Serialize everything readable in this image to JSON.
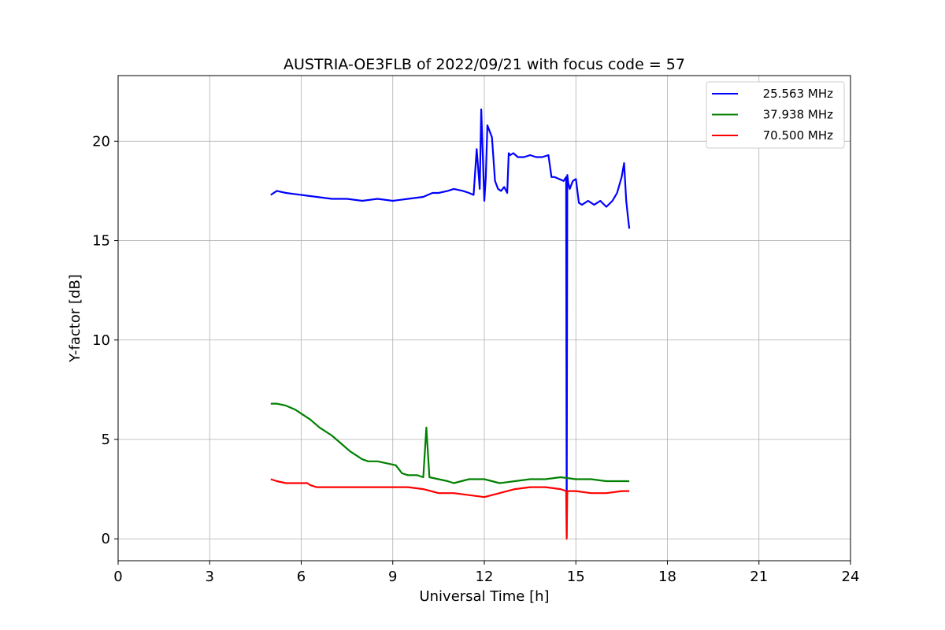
{
  "chart_data": {
    "type": "line",
    "title": "AUSTRIA-OE3FLB of 2022/09/21 with focus code = 57",
    "xlabel": "Universal Time [h]",
    "ylabel": "Y-factor [dB]",
    "xlim": [
      0,
      24
    ],
    "ylim": [
      -1.1,
      23.3
    ],
    "xticks": [
      0,
      3,
      6,
      9,
      12,
      15,
      18,
      21,
      24
    ],
    "yticks": [
      0,
      5,
      10,
      15,
      20
    ],
    "grid": true,
    "legend_position": "top-right",
    "series": [
      {
        "name": "25.563 MHz",
        "color": "#0000ff",
        "x": [
          5.0,
          5.2,
          5.5,
          6.0,
          6.5,
          7.0,
          7.5,
          8.0,
          8.5,
          9.0,
          9.5,
          10.0,
          10.3,
          10.5,
          10.8,
          11.0,
          11.3,
          11.5,
          11.65,
          11.75,
          11.85,
          11.9,
          12.0,
          12.05,
          12.1,
          12.25,
          12.35,
          12.45,
          12.55,
          12.65,
          12.75,
          12.8,
          12.85,
          12.95,
          13.1,
          13.3,
          13.5,
          13.7,
          13.9,
          14.1,
          14.2,
          14.3,
          14.45,
          14.6,
          14.68,
          14.7,
          14.72,
          14.75,
          14.8,
          14.9,
          15.0,
          15.1,
          15.2,
          15.4,
          15.6,
          15.8,
          16.0,
          16.2,
          16.35,
          16.5,
          16.58,
          16.65,
          16.72,
          16.75
        ],
        "y": [
          17.3,
          17.5,
          17.4,
          17.3,
          17.2,
          17.1,
          17.1,
          17.0,
          17.1,
          17.0,
          17.1,
          17.2,
          17.4,
          17.4,
          17.5,
          17.6,
          17.5,
          17.4,
          17.3,
          19.6,
          17.6,
          21.6,
          17.0,
          18.2,
          20.8,
          20.2,
          18.0,
          17.6,
          17.5,
          17.7,
          17.4,
          19.4,
          19.3,
          19.4,
          19.2,
          19.2,
          19.3,
          19.2,
          19.2,
          19.3,
          18.2,
          18.2,
          18.1,
          18.0,
          18.2,
          0.1,
          18.3,
          17.9,
          17.6,
          18.0,
          18.1,
          16.9,
          16.8,
          17.0,
          16.8,
          17.0,
          16.7,
          17.0,
          17.4,
          18.2,
          18.9,
          17.0,
          16.0,
          15.6
        ]
      },
      {
        "name": "37.938 MHz",
        "color": "#008000",
        "x": [
          5.0,
          5.2,
          5.5,
          5.8,
          6.0,
          6.3,
          6.6,
          7.0,
          7.3,
          7.6,
          8.0,
          8.2,
          8.5,
          8.8,
          9.1,
          9.3,
          9.5,
          9.8,
          10.0,
          10.1,
          10.2,
          10.5,
          10.8,
          11.0,
          11.5,
          12.0,
          12.5,
          13.0,
          13.5,
          14.0,
          14.5,
          15.0,
          15.5,
          16.0,
          16.5,
          16.75
        ],
        "y": [
          6.8,
          6.8,
          6.7,
          6.5,
          6.3,
          6.0,
          5.6,
          5.2,
          4.8,
          4.4,
          4.0,
          3.9,
          3.9,
          3.8,
          3.7,
          3.3,
          3.2,
          3.2,
          3.1,
          5.6,
          3.1,
          3.0,
          2.9,
          2.8,
          3.0,
          3.0,
          2.8,
          2.9,
          3.0,
          3.0,
          3.1,
          3.0,
          3.0,
          2.9,
          2.9,
          2.9
        ]
      },
      {
        "name": "70.500 MHz",
        "color": "#ff0000",
        "x": [
          5.0,
          5.2,
          5.5,
          6.0,
          6.2,
          6.3,
          6.5,
          7.0,
          7.5,
          8.0,
          8.5,
          9.0,
          9.5,
          10.0,
          10.5,
          11.0,
          11.5,
          12.0,
          12.5,
          13.0,
          13.5,
          14.0,
          14.5,
          14.68,
          14.7,
          14.72,
          15.0,
          15.5,
          16.0,
          16.5,
          16.75
        ],
        "y": [
          3.0,
          2.9,
          2.8,
          2.8,
          2.8,
          2.7,
          2.6,
          2.6,
          2.6,
          2.6,
          2.6,
          2.6,
          2.6,
          2.5,
          2.3,
          2.3,
          2.2,
          2.1,
          2.3,
          2.5,
          2.6,
          2.6,
          2.5,
          2.4,
          0.0,
          2.4,
          2.4,
          2.3,
          2.3,
          2.4,
          2.4
        ]
      }
    ]
  }
}
